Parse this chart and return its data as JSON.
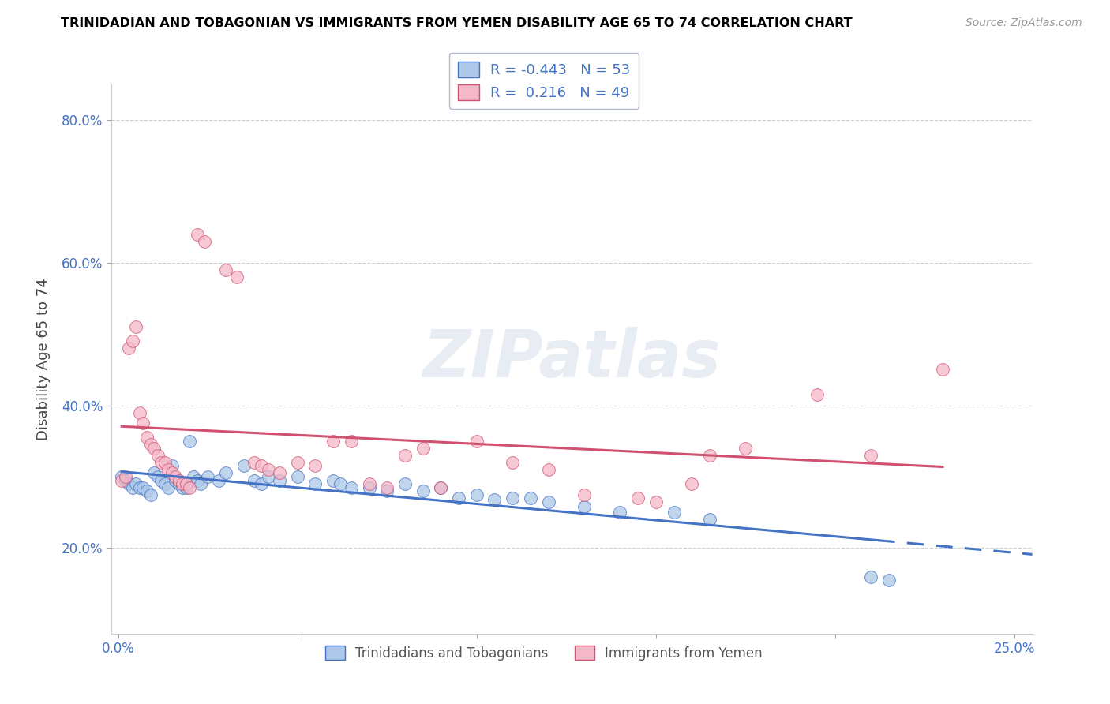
{
  "title": "TRINIDADIAN AND TOBAGONIAN VS IMMIGRANTS FROM YEMEN DISABILITY AGE 65 TO 74 CORRELATION CHART",
  "source": "Source: ZipAtlas.com",
  "ylabel": "Disability Age 65 to 74",
  "xlim": [
    -0.002,
    0.255
  ],
  "ylim": [
    0.08,
    0.85
  ],
  "yticks": [
    0.2,
    0.4,
    0.6,
    0.8
  ],
  "ytick_labels": [
    "20.0%",
    "40.0%",
    "60.0%",
    "80.0%"
  ],
  "xtick_vals": [
    0.0,
    0.05,
    0.1,
    0.15,
    0.2,
    0.25
  ],
  "xtick_labels": [
    "0.0%",
    "",
    "",
    "",
    "",
    "25.0%"
  ],
  "watermark": "ZIPatlas",
  "blue_R": -0.443,
  "blue_N": 53,
  "pink_R": 0.216,
  "pink_N": 49,
  "blue_color": "#adc8e8",
  "pink_color": "#f5b8c8",
  "blue_line_color": "#4472c4",
  "pink_line_color": "#d05070",
  "blue_scatter": [
    [
      0.001,
      0.3
    ],
    [
      0.002,
      0.295
    ],
    [
      0.003,
      0.29
    ],
    [
      0.004,
      0.285
    ],
    [
      0.005,
      0.29
    ],
    [
      0.006,
      0.285
    ],
    [
      0.007,
      0.285
    ],
    [
      0.008,
      0.28
    ],
    [
      0.009,
      0.275
    ],
    [
      0.01,
      0.305
    ],
    [
      0.011,
      0.3
    ],
    [
      0.012,
      0.295
    ],
    [
      0.013,
      0.29
    ],
    [
      0.014,
      0.285
    ],
    [
      0.015,
      0.315
    ],
    [
      0.016,
      0.295
    ],
    [
      0.017,
      0.29
    ],
    [
      0.018,
      0.285
    ],
    [
      0.019,
      0.285
    ],
    [
      0.02,
      0.35
    ],
    [
      0.021,
      0.3
    ],
    [
      0.022,
      0.295
    ],
    [
      0.023,
      0.29
    ],
    [
      0.025,
      0.3
    ],
    [
      0.028,
      0.295
    ],
    [
      0.03,
      0.305
    ],
    [
      0.035,
      0.315
    ],
    [
      0.038,
      0.295
    ],
    [
      0.04,
      0.29
    ],
    [
      0.042,
      0.3
    ],
    [
      0.045,
      0.295
    ],
    [
      0.05,
      0.3
    ],
    [
      0.055,
      0.29
    ],
    [
      0.06,
      0.295
    ],
    [
      0.062,
      0.29
    ],
    [
      0.065,
      0.285
    ],
    [
      0.07,
      0.285
    ],
    [
      0.075,
      0.28
    ],
    [
      0.08,
      0.29
    ],
    [
      0.085,
      0.28
    ],
    [
      0.09,
      0.285
    ],
    [
      0.095,
      0.27
    ],
    [
      0.1,
      0.275
    ],
    [
      0.105,
      0.268
    ],
    [
      0.11,
      0.27
    ],
    [
      0.115,
      0.27
    ],
    [
      0.12,
      0.265
    ],
    [
      0.13,
      0.258
    ],
    [
      0.14,
      0.25
    ],
    [
      0.155,
      0.25
    ],
    [
      0.165,
      0.24
    ],
    [
      0.21,
      0.16
    ],
    [
      0.215,
      0.155
    ]
  ],
  "pink_scatter": [
    [
      0.001,
      0.295
    ],
    [
      0.002,
      0.3
    ],
    [
      0.003,
      0.48
    ],
    [
      0.004,
      0.49
    ],
    [
      0.005,
      0.51
    ],
    [
      0.006,
      0.39
    ],
    [
      0.007,
      0.375
    ],
    [
      0.008,
      0.355
    ],
    [
      0.009,
      0.345
    ],
    [
      0.01,
      0.34
    ],
    [
      0.011,
      0.33
    ],
    [
      0.012,
      0.32
    ],
    [
      0.013,
      0.32
    ],
    [
      0.014,
      0.31
    ],
    [
      0.015,
      0.305
    ],
    [
      0.016,
      0.3
    ],
    [
      0.017,
      0.295
    ],
    [
      0.018,
      0.29
    ],
    [
      0.019,
      0.29
    ],
    [
      0.02,
      0.285
    ],
    [
      0.022,
      0.64
    ],
    [
      0.024,
      0.63
    ],
    [
      0.03,
      0.59
    ],
    [
      0.033,
      0.58
    ],
    [
      0.038,
      0.32
    ],
    [
      0.04,
      0.315
    ],
    [
      0.042,
      0.31
    ],
    [
      0.045,
      0.305
    ],
    [
      0.05,
      0.32
    ],
    [
      0.055,
      0.315
    ],
    [
      0.06,
      0.35
    ],
    [
      0.065,
      0.35
    ],
    [
      0.07,
      0.29
    ],
    [
      0.075,
      0.285
    ],
    [
      0.08,
      0.33
    ],
    [
      0.085,
      0.34
    ],
    [
      0.09,
      0.285
    ],
    [
      0.1,
      0.35
    ],
    [
      0.11,
      0.32
    ],
    [
      0.12,
      0.31
    ],
    [
      0.13,
      0.275
    ],
    [
      0.145,
      0.27
    ],
    [
      0.15,
      0.265
    ],
    [
      0.16,
      0.29
    ],
    [
      0.165,
      0.33
    ],
    [
      0.175,
      0.34
    ],
    [
      0.195,
      0.415
    ],
    [
      0.21,
      0.33
    ],
    [
      0.23,
      0.45
    ]
  ]
}
